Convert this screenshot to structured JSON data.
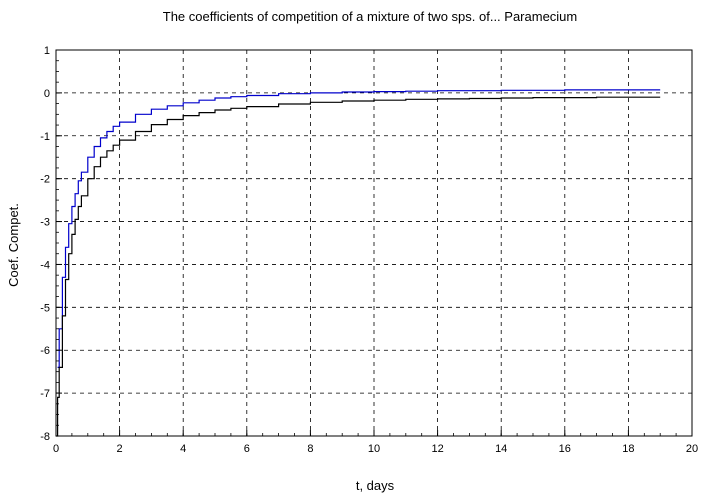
{
  "chart_data": {
    "type": "line",
    "title": "The coefficients of competition of a mixture of two sps. of... Paramecium",
    "xlabel": "t, days",
    "ylabel": "Coef. Compet.",
    "xlim": [
      0,
      20
    ],
    "ylim": [
      -8,
      1
    ],
    "xticks": [
      0,
      2,
      4,
      6,
      8,
      10,
      12,
      14,
      16,
      18,
      20
    ],
    "yticks": [
      -8,
      -7,
      -6,
      -5,
      -4,
      -3,
      -2,
      -1,
      0,
      1
    ],
    "minor_ticks": {
      "x": 0.5,
      "y": 0.25
    },
    "grid": true,
    "series": [
      {
        "color": "#0000cc",
        "x": [
          0.05,
          0.1,
          0.2,
          0.3,
          0.4,
          0.5,
          0.6,
          0.7,
          0.8,
          1.0,
          1.2,
          1.4,
          1.6,
          1.8,
          2.0,
          2.5,
          3.0,
          3.5,
          4.0,
          4.5,
          5.0,
          5.5,
          6.0,
          7.0,
          8.0,
          9.0,
          10.0,
          11.0,
          12.0,
          13.0,
          14.0,
          15.0,
          16.0,
          17.0,
          18.0,
          19.0
        ],
        "y": [
          -6.4,
          -5.5,
          -4.3,
          -3.6,
          -3.05,
          -2.65,
          -2.35,
          -2.05,
          -1.85,
          -1.5,
          -1.25,
          -1.05,
          -0.9,
          -0.78,
          -0.68,
          -0.5,
          -0.38,
          -0.3,
          -0.23,
          -0.17,
          -0.12,
          -0.09,
          -0.06,
          -0.02,
          0.0,
          0.02,
          0.03,
          0.04,
          0.05,
          0.05,
          0.06,
          0.06,
          0.07,
          0.07,
          0.07,
          0.07
        ]
      },
      {
        "color": "#000000",
        "x": [
          0.0,
          0.05,
          0.1,
          0.2,
          0.3,
          0.4,
          0.5,
          0.6,
          0.7,
          0.8,
          1.0,
          1.2,
          1.4,
          1.6,
          1.8,
          2.0,
          2.5,
          3.0,
          3.5,
          4.0,
          4.5,
          5.0,
          5.5,
          6.0,
          7.0,
          8.0,
          9.0,
          10.0,
          11.0,
          12.0,
          13.0,
          14.0,
          15.0,
          16.0,
          17.0,
          18.0,
          19.0
        ],
        "y": [
          -8.0,
          -7.1,
          -6.4,
          -5.2,
          -4.35,
          -3.75,
          -3.3,
          -2.95,
          -2.65,
          -2.4,
          -2.0,
          -1.72,
          -1.5,
          -1.35,
          -1.22,
          -1.1,
          -0.9,
          -0.74,
          -0.62,
          -0.53,
          -0.46,
          -0.4,
          -0.36,
          -0.32,
          -0.26,
          -0.22,
          -0.19,
          -0.17,
          -0.15,
          -0.14,
          -0.13,
          -0.12,
          -0.11,
          -0.11,
          -0.1,
          -0.1,
          -0.1
        ]
      }
    ]
  }
}
